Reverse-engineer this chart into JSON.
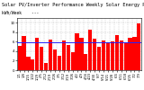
{
  "title": "Solar PV/Inverter Performance Weekly Solar Energy Production",
  "title2": "kWh/Week    ---",
  "bar_color": "#ff0000",
  "avg_line_color": "#2222ff",
  "background_color": "#ffffff",
  "plot_bg_color": "#ffffff",
  "grid_color": "#aaaaaa",
  "values": [
    5.1,
    7.2,
    2.8,
    2.2,
    6.8,
    5.0,
    1.5,
    6.5,
    4.3,
    3.1,
    6.2,
    5.4,
    3.8,
    7.8,
    6.9,
    3.5,
    8.5,
    6.6,
    5.0,
    6.2,
    5.8,
    6.0,
    7.4,
    6.3,
    5.6,
    6.9,
    7.1,
    9.8
  ],
  "ylim": [
    0,
    11
  ],
  "yticks": [
    0,
    2,
    4,
    6,
    8,
    10
  ],
  "avg": 5.8,
  "title_fontsize": 3.8,
  "axis_fontsize": 3.2,
  "tick_fontsize": 2.8,
  "figsize": [
    1.6,
    1.0
  ],
  "dpi": 100,
  "x_labels": [
    "1/1",
    "1/8",
    "1/15",
    "1/22",
    "1/29",
    "2/5",
    "2/12",
    "2/19",
    "2/26",
    "3/5",
    "3/12",
    "3/19",
    "3/26",
    "4/2",
    "4/9",
    "4/16",
    "4/23",
    "4/30",
    "5/7",
    "5/14",
    "5/21",
    "5/28",
    "6/4",
    "6/11",
    "6/18",
    "6/25",
    "7/2",
    "7/9"
  ]
}
